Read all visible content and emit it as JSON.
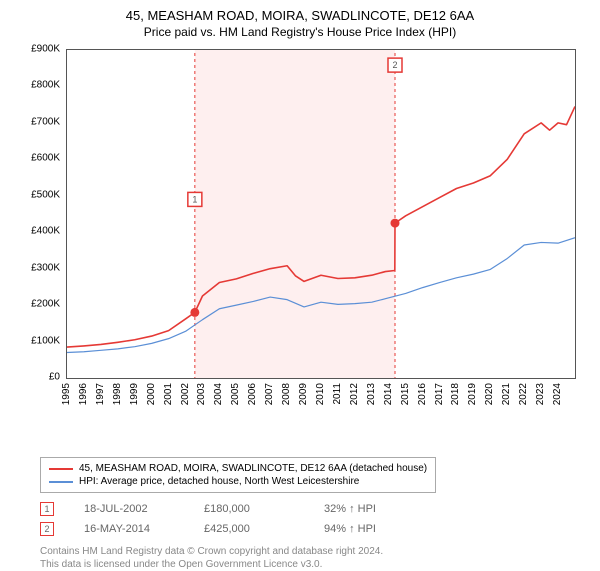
{
  "title": "45, MEASHAM ROAD, MOIRA, SWADLINCOTE, DE12 6AA",
  "subtitle": "Price paid vs. HM Land Registry's House Price Index (HPI)",
  "chart": {
    "type": "line",
    "background_color": "#ffffff",
    "axis_color": "#555555",
    "label_fontsize": 10,
    "title_fontsize": 13,
    "ylim": [
      0,
      900000
    ],
    "ytick_step": 100000,
    "yticks": [
      "£0",
      "£100K",
      "£200K",
      "£300K",
      "£400K",
      "£500K",
      "£600K",
      "£700K",
      "£800K",
      "£900K"
    ],
    "xlim": [
      1995,
      2025
    ],
    "xticks": [
      1995,
      1996,
      1997,
      1998,
      1999,
      2000,
      2001,
      2002,
      2003,
      2004,
      2005,
      2006,
      2007,
      2008,
      2009,
      2010,
      2011,
      2012,
      2013,
      2014,
      2015,
      2016,
      2017,
      2018,
      2019,
      2020,
      2021,
      2022,
      2023,
      2024
    ],
    "highlight_band": {
      "x_start": 2002.55,
      "x_end": 2014.37,
      "fill": "#fde1e1",
      "opacity": 0.55
    },
    "vlines": [
      {
        "x": 2002.55,
        "color": "#e53935",
        "dash": "3,3",
        "width": 1
      },
      {
        "x": 2014.37,
        "color": "#e53935",
        "dash": "3,3",
        "width": 1
      }
    ],
    "markers": [
      {
        "id": "1",
        "x": 2002.55,
        "y": 180000,
        "color": "#e53935",
        "box_y_offset": -120
      },
      {
        "id": "2",
        "x": 2014.37,
        "y": 425000,
        "color": "#e53935",
        "box_y_offset": -165
      }
    ],
    "series": [
      {
        "name": "price_paid",
        "label": "45, MEASHAM ROAD, MOIRA, SWADLINCOTE, DE12 6AA (detached house)",
        "color": "#e53935",
        "width": 1.6,
        "points": [
          [
            1995,
            85000
          ],
          [
            1996,
            88000
          ],
          [
            1997,
            92000
          ],
          [
            1998,
            98000
          ],
          [
            1999,
            105000
          ],
          [
            2000,
            115000
          ],
          [
            2001,
            130000
          ],
          [
            2002,
            162000
          ],
          [
            2002.55,
            180000
          ],
          [
            2003,
            225000
          ],
          [
            2004,
            262000
          ],
          [
            2005,
            272000
          ],
          [
            2006,
            287000
          ],
          [
            2007,
            300000
          ],
          [
            2008,
            308000
          ],
          [
            2008.5,
            280000
          ],
          [
            2009,
            265000
          ],
          [
            2010,
            282000
          ],
          [
            2011,
            273000
          ],
          [
            2012,
            275000
          ],
          [
            2013,
            282000
          ],
          [
            2013.8,
            292000
          ],
          [
            2014.36,
            295000
          ],
          [
            2014.37,
            425000
          ],
          [
            2015,
            445000
          ],
          [
            2016,
            470000
          ],
          [
            2017,
            495000
          ],
          [
            2018,
            520000
          ],
          [
            2019,
            535000
          ],
          [
            2020,
            555000
          ],
          [
            2021,
            600000
          ],
          [
            2022,
            670000
          ],
          [
            2023,
            700000
          ],
          [
            2023.5,
            680000
          ],
          [
            2024,
            700000
          ],
          [
            2024.5,
            695000
          ],
          [
            2025,
            745000
          ]
        ]
      },
      {
        "name": "hpi",
        "label": "HPI: Average price, detached house, North West Leicestershire",
        "color": "#5b8fd6",
        "width": 1.2,
        "points": [
          [
            1995,
            70000
          ],
          [
            1996,
            72000
          ],
          [
            1997,
            76000
          ],
          [
            1998,
            80000
          ],
          [
            1999,
            86000
          ],
          [
            2000,
            95000
          ],
          [
            2001,
            108000
          ],
          [
            2002,
            128000
          ],
          [
            2003,
            160000
          ],
          [
            2004,
            190000
          ],
          [
            2005,
            200000
          ],
          [
            2006,
            210000
          ],
          [
            2007,
            222000
          ],
          [
            2008,
            215000
          ],
          [
            2009,
            195000
          ],
          [
            2010,
            208000
          ],
          [
            2011,
            202000
          ],
          [
            2012,
            204000
          ],
          [
            2013,
            208000
          ],
          [
            2014,
            220000
          ],
          [
            2015,
            232000
          ],
          [
            2016,
            248000
          ],
          [
            2017,
            262000
          ],
          [
            2018,
            275000
          ],
          [
            2019,
            285000
          ],
          [
            2020,
            298000
          ],
          [
            2021,
            328000
          ],
          [
            2022,
            365000
          ],
          [
            2023,
            372000
          ],
          [
            2024,
            370000
          ],
          [
            2025,
            385000
          ]
        ]
      }
    ]
  },
  "legend": {
    "rows": [
      {
        "color": "#e53935",
        "label": "45, MEASHAM ROAD, MOIRA, SWADLINCOTE, DE12 6AA (detached house)"
      },
      {
        "color": "#5b8fd6",
        "label": "HPI: Average price, detached house, North West Leicestershire"
      }
    ]
  },
  "marker_table": {
    "rows": [
      {
        "id": "1",
        "color": "#e53935",
        "date": "18-JUL-2002",
        "price": "£180,000",
        "delta": "32% ↑ HPI"
      },
      {
        "id": "2",
        "color": "#e53935",
        "date": "16-MAY-2014",
        "price": "£425,000",
        "delta": "94% ↑ HPI"
      }
    ]
  },
  "footer": {
    "line1": "Contains HM Land Registry data © Crown copyright and database right 2024.",
    "line2": "This data is licensed under the Open Government Licence v3.0."
  }
}
